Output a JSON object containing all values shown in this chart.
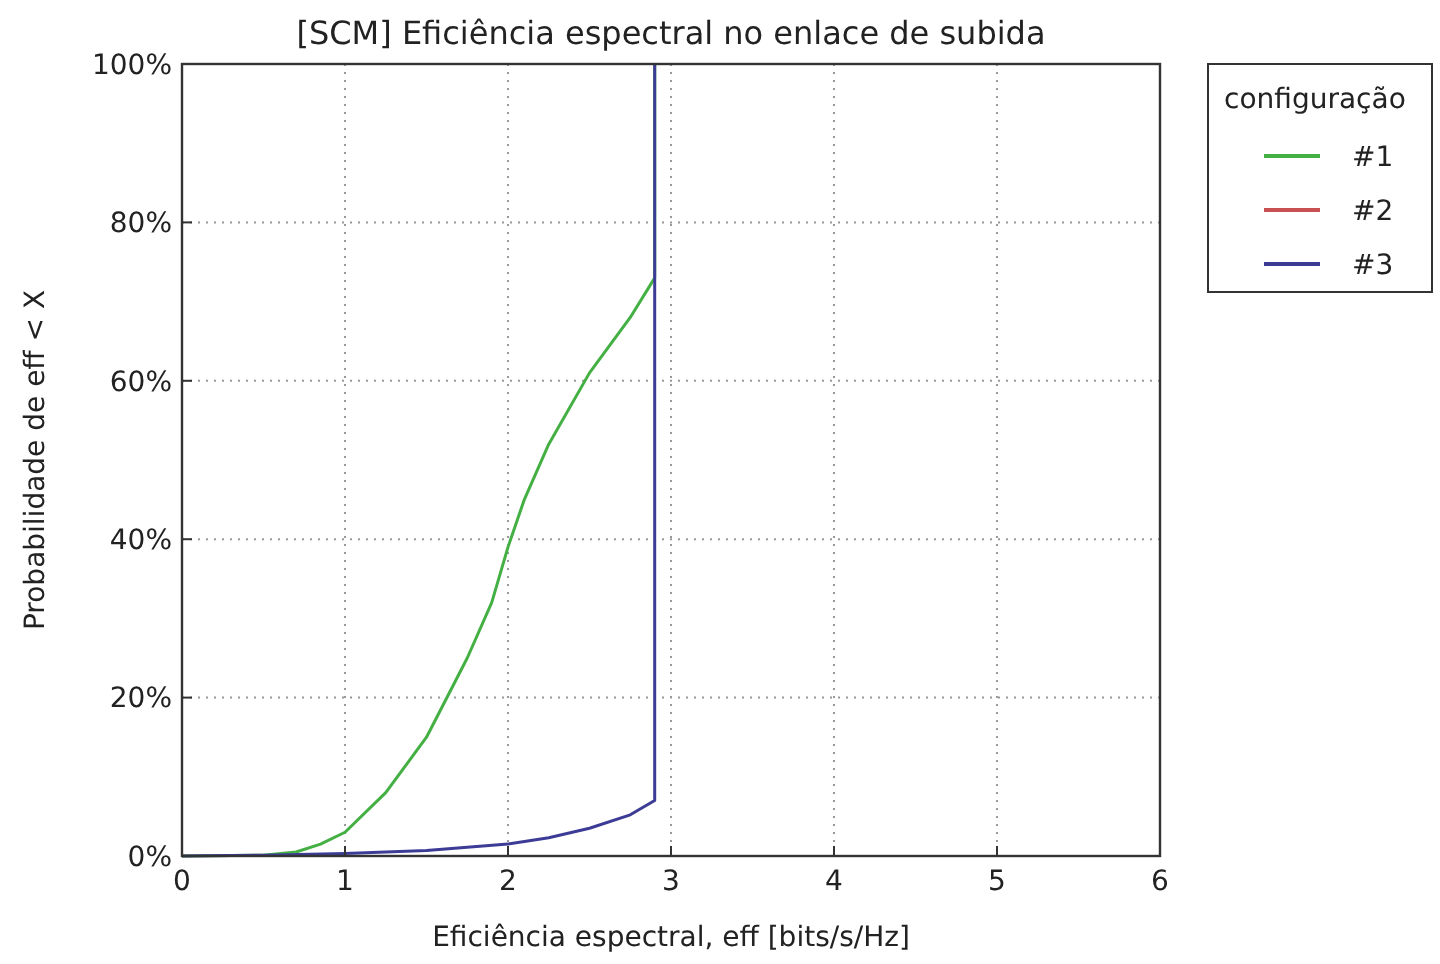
{
  "chart_data": {
    "type": "line",
    "title": "[SCM] Eficiência espectral no enlace de subida",
    "xlabel": "Eficiência espectral, eff [bits/s/Hz]",
    "ylabel": "Probabilidade de eff < X",
    "legend_title": "configuração",
    "legend": "top right",
    "grid": true,
    "line_style": "solid",
    "marker": "none",
    "xlim": [
      0,
      6
    ],
    "xticks": [
      0,
      1,
      2,
      3,
      4,
      5,
      6
    ],
    "ylim": [
      0,
      100
    ],
    "yticks": [
      {
        "value": 0,
        "label": "0%"
      },
      {
        "value": 20,
        "label": "20%"
      },
      {
        "value": 40,
        "label": "40%"
      },
      {
        "value": 60,
        "label": "60%"
      },
      {
        "value": 80,
        "label": "80%"
      },
      {
        "value": 100,
        "label": "100%"
      }
    ],
    "series": [
      {
        "name": "#1",
        "color": "#44b044",
        "x": [
          0,
          0.5,
          0.7,
          0.85,
          1,
          1.25,
          1.5,
          1.75,
          1.9,
          2,
          2.1,
          2.25,
          2.5,
          2.75,
          2.9,
          2.9
        ],
        "values": [
          0,
          0.1,
          0.5,
          1.5,
          3,
          8,
          15,
          25,
          32,
          39,
          45,
          52,
          61,
          68,
          73,
          100
        ]
      },
      {
        "name": "#2",
        "color": "#c85050"
      },
      {
        "name": "#3",
        "color": "#3c3c96",
        "x": [
          0,
          0.5,
          1,
          1.5,
          2,
          2.25,
          2.5,
          2.75,
          2.9,
          2.9
        ],
        "values": [
          0,
          0.1,
          0.3,
          0.7,
          1.5,
          2.3,
          3.5,
          5.2,
          7,
          100
        ]
      }
    ]
  }
}
